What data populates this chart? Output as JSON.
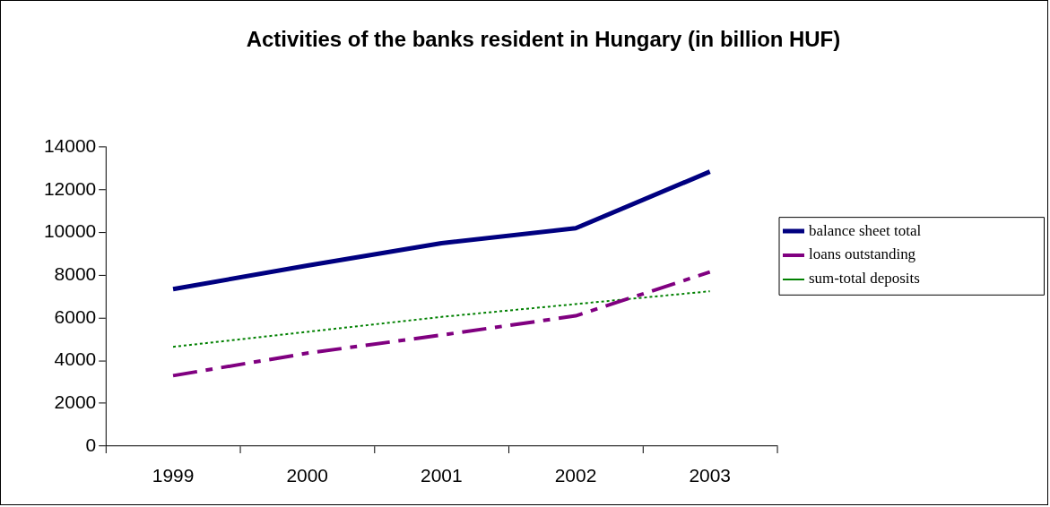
{
  "chart_data": {
    "type": "line",
    "title": "Activities of the banks resident in Hungary (in billion HUF)",
    "categories": [
      "1999",
      "2000",
      "2001",
      "2002",
      "2003"
    ],
    "series": [
      {
        "name": "balance sheet total",
        "color": "#000080",
        "line_style": "solid",
        "values": [
          7350,
          8450,
          9500,
          10200,
          12850
        ]
      },
      {
        "name": "loans outstanding",
        "color": "#800080",
        "line_style": "dashed",
        "values": [
          3300,
          4350,
          5200,
          6100,
          8150
        ]
      },
      {
        "name": "sum-total deposits",
        "color": "#008000",
        "line_style": "dotted",
        "values": [
          4650,
          5350,
          6050,
          6650,
          7250
        ]
      }
    ],
    "ylim": [
      0,
      14000
    ],
    "yticks": [
      0,
      2000,
      4000,
      6000,
      8000,
      10000,
      12000,
      14000
    ],
    "grid": false,
    "legend": "right",
    "marker": "none"
  }
}
